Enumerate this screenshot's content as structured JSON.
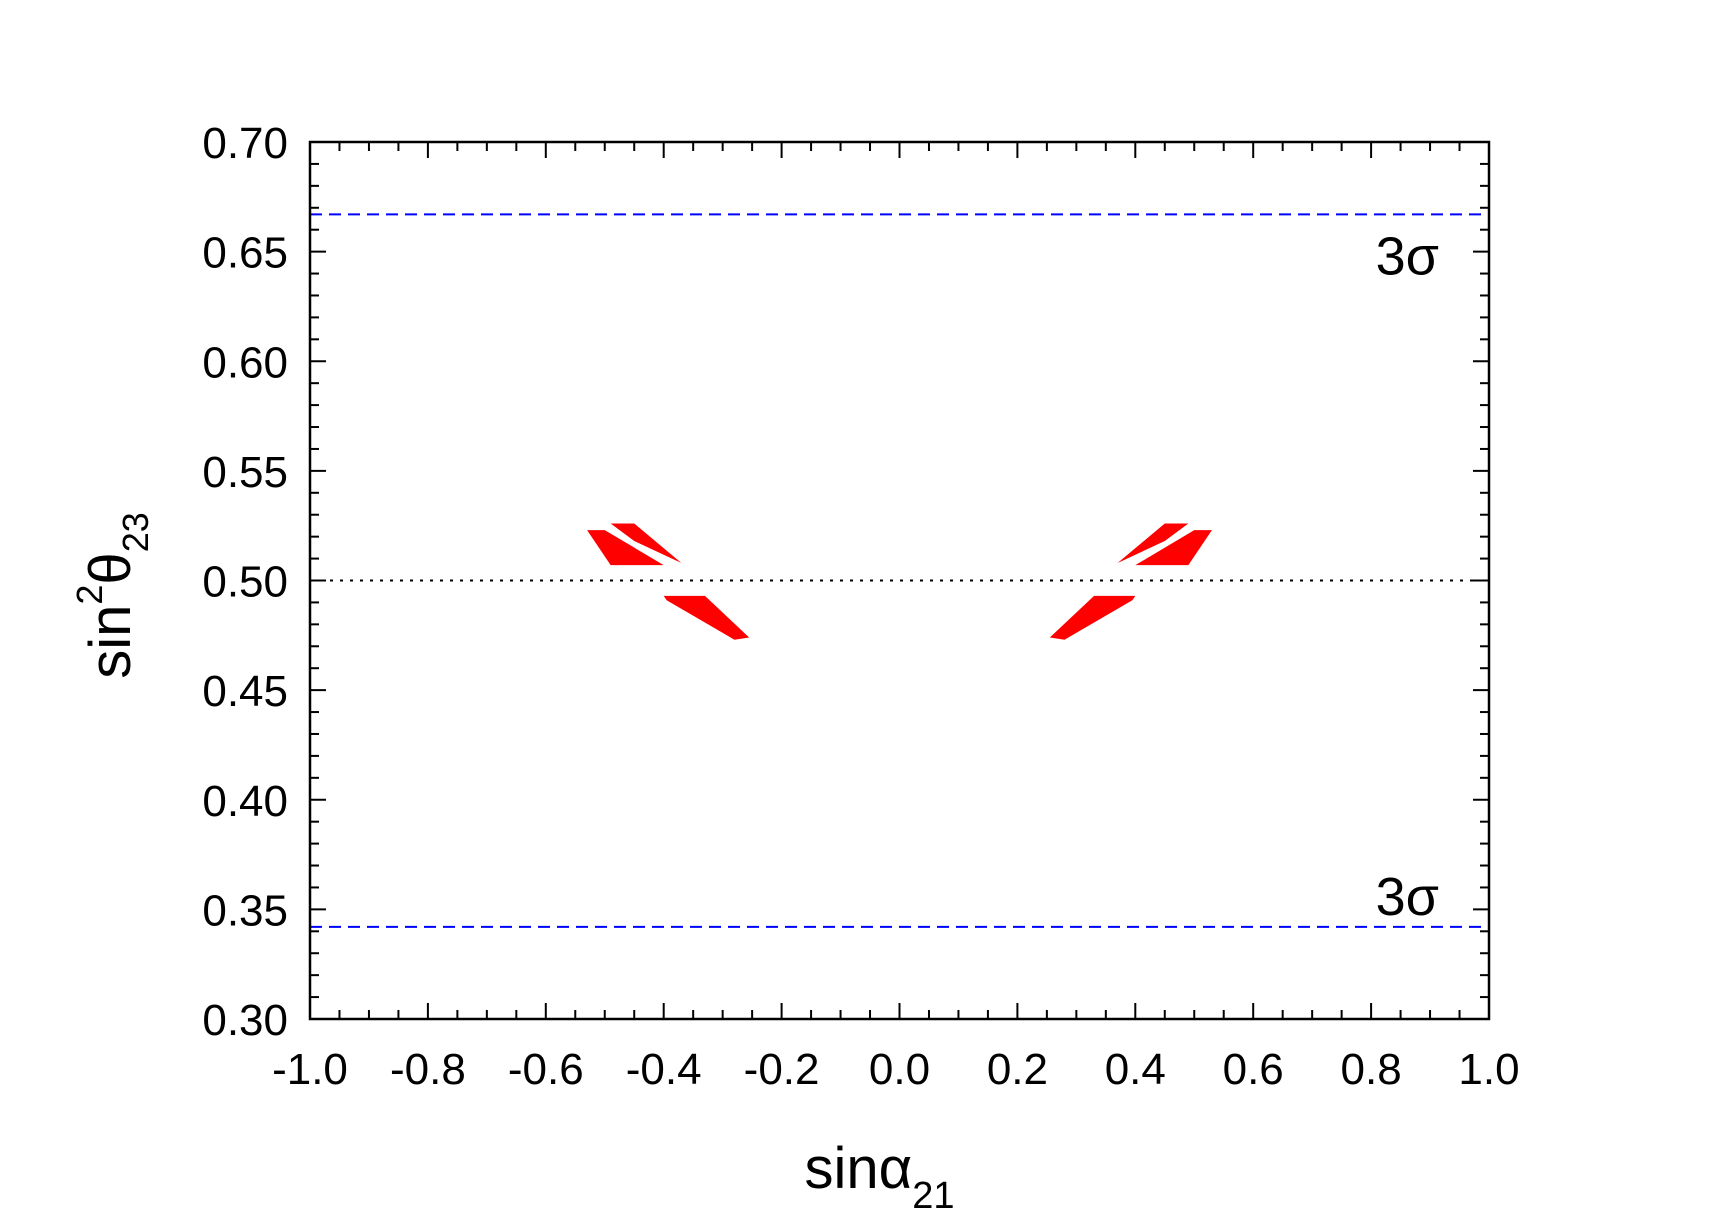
{
  "chart_data": {
    "type": "scatter",
    "xlabel": "sinα",
    "xlabel_sub": "21",
    "ylabel": "sin",
    "ylabel_sup": "2",
    "ylabel_greek": "θ",
    "ylabel_sub": "23",
    "xlim": [
      -1.0,
      1.0
    ],
    "ylim": [
      0.3,
      0.7
    ],
    "xticks": [
      {
        "value": -1.0,
        "label": "-1.0"
      },
      {
        "value": -0.8,
        "label": "-0.8"
      },
      {
        "value": -0.6,
        "label": "-0.6"
      },
      {
        "value": -0.4,
        "label": "-0.4"
      },
      {
        "value": -0.2,
        "label": "-0.2"
      },
      {
        "value": 0.0,
        "label": "0.0"
      },
      {
        "value": 0.2,
        "label": "0.2"
      },
      {
        "value": 0.4,
        "label": "0.4"
      },
      {
        "value": 0.6,
        "label": "0.6"
      },
      {
        "value": 0.8,
        "label": "0.8"
      },
      {
        "value": 1.0,
        "label": "1.0"
      }
    ],
    "yticks": [
      {
        "value": 0.3,
        "label": "0.30"
      },
      {
        "value": 0.35,
        "label": "0.35"
      },
      {
        "value": 0.4,
        "label": "0.40"
      },
      {
        "value": 0.45,
        "label": "0.45"
      },
      {
        "value": 0.5,
        "label": "0.50"
      },
      {
        "value": 0.55,
        "label": "0.55"
      },
      {
        "value": 0.6,
        "label": "0.60"
      },
      {
        "value": 0.65,
        "label": "0.65"
      },
      {
        "value": 0.7,
        "label": "0.70"
      }
    ],
    "xminor": 4,
    "yminor": 5,
    "color": "#ff0000",
    "regions": [
      {
        "x": [
          -0.53,
          -0.5,
          -0.4,
          -0.49
        ],
        "y": [
          0.523,
          0.523,
          0.507,
          0.507
        ]
      },
      {
        "x": [
          -0.49,
          -0.45,
          -0.37,
          -0.45
        ],
        "y": [
          0.526,
          0.526,
          0.508,
          0.518
        ]
      },
      {
        "x": [
          -0.4,
          -0.33,
          -0.255,
          -0.28,
          -0.395
        ],
        "y": [
          0.493,
          0.493,
          0.474,
          0.473,
          0.491
        ]
      },
      {
        "x": [
          0.53,
          0.5,
          0.4,
          0.49
        ],
        "y": [
          0.523,
          0.523,
          0.507,
          0.507
        ]
      },
      {
        "x": [
          0.49,
          0.45,
          0.37,
          0.45
        ],
        "y": [
          0.526,
          0.526,
          0.508,
          0.518
        ]
      },
      {
        "x": [
          0.4,
          0.33,
          0.255,
          0.28,
          0.395
        ],
        "y": [
          0.493,
          0.493,
          0.474,
          0.473,
          0.491
        ]
      }
    ],
    "hlines": [
      {
        "y": 0.667,
        "style": "dashed",
        "color": "#0000ff",
        "label": "3σ"
      },
      {
        "y": 0.342,
        "style": "dashed",
        "color": "#0000ff",
        "label": "3σ"
      },
      {
        "y": 0.5,
        "style": "dotted",
        "color": "#000000"
      }
    ]
  }
}
